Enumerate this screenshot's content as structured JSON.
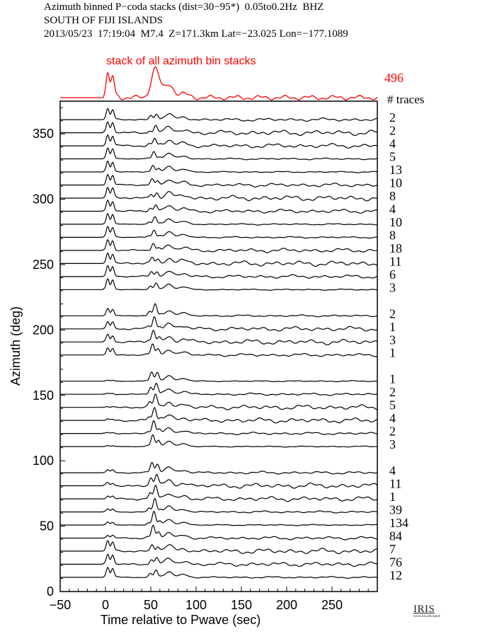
{
  "header": {
    "line1": "Azimuth binned P−coda stacks (dist=30−95*)  0.05to0.2Hz  BHZ",
    "line2": "SOUTH OF FIJI ISLANDS",
    "line3": "2013/05/23  17:19:04  M7.4  Z=171.3km Lat=−23.025 Lon=−177.1089"
  },
  "stack": {
    "label": "stack of all azimuth bin stacks",
    "count": "496",
    "count_caption": "# traces",
    "color": "#ff0000"
  },
  "logo": {
    "name": "IRIS",
    "url": "www.iris.edu/spud"
  },
  "chart_data": {
    "type": "line",
    "title": "Azimuth binned P−coda stacks (dist=30−95*)  0.05to0.2Hz  BHZ",
    "xlabel": "Time relative to Pwave (sec)",
    "ylabel": "Azimuth (deg)",
    "xlim": [
      -50,
      300
    ],
    "ylim": [
      0,
      375
    ],
    "x_ticks": [
      "−50",
      "0",
      "50",
      "100",
      "150",
      "200",
      "250"
    ],
    "x_tick_values": [
      -50,
      0,
      50,
      100,
      150,
      200,
      250
    ],
    "y_ticks": [
      "0",
      "50",
      "100",
      "150",
      "200",
      "250",
      "300",
      "350"
    ],
    "y_tick_values": [
      0,
      50,
      100,
      150,
      200,
      250,
      300,
      350
    ],
    "trace_color": "#000000",
    "traces": [
      {
        "azimuth": 362.5,
        "count": "2"
      },
      {
        "azimuth": 352.5,
        "count": "2"
      },
      {
        "azimuth": 342.5,
        "count": "4"
      },
      {
        "azimuth": 332.5,
        "count": "5"
      },
      {
        "azimuth": 322.5,
        "count": "13"
      },
      {
        "azimuth": 312.5,
        "count": "10"
      },
      {
        "azimuth": 302.5,
        "count": "8"
      },
      {
        "azimuth": 292.5,
        "count": "4"
      },
      {
        "azimuth": 282.5,
        "count": "10"
      },
      {
        "azimuth": 272.5,
        "count": "8"
      },
      {
        "azimuth": 262.5,
        "count": "18"
      },
      {
        "azimuth": 252.5,
        "count": "11"
      },
      {
        "azimuth": 242.5,
        "count": "6"
      },
      {
        "azimuth": 232.5,
        "count": "3"
      },
      {
        "azimuth": 212.5,
        "count": "2"
      },
      {
        "azimuth": 202.5,
        "count": "1"
      },
      {
        "azimuth": 192.5,
        "count": "3"
      },
      {
        "azimuth": 182.5,
        "count": "1"
      },
      {
        "azimuth": 162.5,
        "count": "1"
      },
      {
        "azimuth": 152.5,
        "count": "2"
      },
      {
        "azimuth": 142.5,
        "count": "5"
      },
      {
        "azimuth": 132.5,
        "count": "4"
      },
      {
        "azimuth": 122.5,
        "count": "2"
      },
      {
        "azimuth": 112.5,
        "count": "3"
      },
      {
        "azimuth": 92.5,
        "count": "4"
      },
      {
        "azimuth": 82.5,
        "count": "11"
      },
      {
        "azimuth": 72.5,
        "count": "1"
      },
      {
        "azimuth": 62.5,
        "count": "39"
      },
      {
        "azimuth": 52.5,
        "count": "134"
      },
      {
        "azimuth": 42.5,
        "count": "84"
      },
      {
        "azimuth": 32.5,
        "count": "7"
      },
      {
        "azimuth": 22.5,
        "count": "76"
      },
      {
        "azimuth": 12.5,
        "count": "12"
      }
    ]
  }
}
